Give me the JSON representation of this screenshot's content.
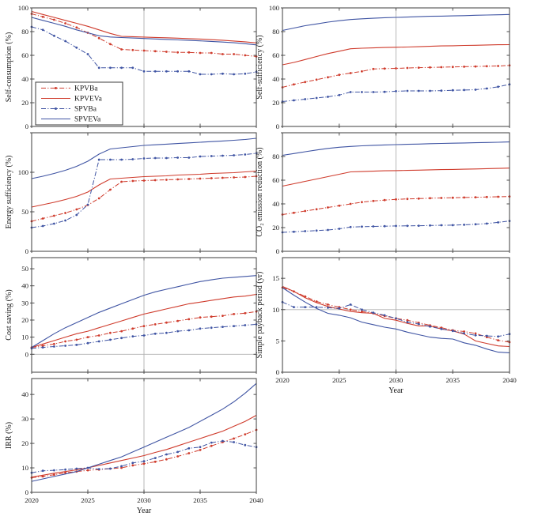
{
  "colors": {
    "red": "#cf3b2c",
    "blue": "#3f54a3",
    "grid": "#b0b0b0",
    "axis": "#3d3d3d",
    "background": "#ffffff"
  },
  "legend": {
    "position": "southwest-of-first-panel",
    "items": [
      {
        "label": "KPVBa",
        "color": "red",
        "style": "dashdot",
        "markers": true
      },
      {
        "label": "KPVEVa",
        "color": "red",
        "style": "solid",
        "markers": false
      },
      {
        "label": "SPVBa",
        "color": "blue",
        "style": "dashdot",
        "markers": true
      },
      {
        "label": "SPVEVa",
        "color": "blue",
        "style": "solid",
        "markers": false
      }
    ]
  },
  "chart_meta": {
    "x_years": [
      2020,
      2021,
      2022,
      2023,
      2024,
      2025,
      2026,
      2027,
      2028,
      2029,
      2030,
      2031,
      2032,
      2033,
      2034,
      2035,
      2036,
      2037,
      2038,
      2039,
      2040
    ],
    "xlabel": "Year",
    "grid": "vertical line at 2030 on every panel"
  },
  "chart_data": [
    {
      "id": "self-consumption",
      "type": "line",
      "ylabel": "Self-consumption (%)",
      "ylim": [
        0,
        100
      ],
      "yticks": [
        0,
        20,
        40,
        60,
        80,
        100
      ],
      "ytick_labels": [
        "0",
        "20",
        "40",
        "60",
        "80",
        "100"
      ],
      "xticks": [
        2020,
        2025,
        2030,
        2035,
        2040
      ],
      "show_x_tick_labels": false,
      "xlabel": "",
      "vgrid": [
        2030
      ],
      "hgrid": [],
      "legend_here": true,
      "series": [
        {
          "name": "KPVBa",
          "color": "red",
          "style": "dashdot",
          "markers": true,
          "values": [
            95,
            92.5,
            90,
            87,
            83.5,
            79,
            74.5,
            69.5,
            65,
            64.5,
            64,
            63.5,
            63,
            62.5,
            62.5,
            62,
            62,
            61,
            61,
            60,
            59
          ]
        },
        {
          "name": "KPVEVa",
          "color": "red",
          "style": "solid",
          "markers": false,
          "values": [
            97,
            94.5,
            92,
            89.5,
            87,
            84.5,
            81.5,
            78.5,
            76,
            75.7,
            75.4,
            75.1,
            74.8,
            74.5,
            74.1,
            73.7,
            73.2,
            72.7,
            72.1,
            71.4,
            70.5
          ]
        },
        {
          "name": "SPVBa",
          "color": "blue",
          "style": "dashdot",
          "markers": true,
          "values": [
            84,
            81.5,
            76.5,
            72,
            66.5,
            61,
            49.5,
            49.5,
            49.5,
            49.5,
            46.5,
            46.5,
            46.5,
            46.5,
            46.5,
            44,
            44,
            44.5,
            44,
            44.5,
            46
          ]
        },
        {
          "name": "SPVEVa",
          "color": "blue",
          "style": "solid",
          "markers": false,
          "values": [
            92,
            89.5,
            87,
            84.5,
            81.5,
            79,
            76.5,
            75.5,
            75,
            74.6,
            74.2,
            73.8,
            73.4,
            73,
            72.6,
            72.2,
            71.7,
            71.2,
            70.6,
            69.8,
            68.8
          ]
        }
      ]
    },
    {
      "id": "self-sufficiency",
      "type": "line",
      "ylabel": "Self-sufficiency (%)",
      "ylim": [
        0,
        100
      ],
      "yticks": [
        0,
        20,
        40,
        60,
        80,
        100
      ],
      "ytick_labels": [
        "0",
        "20",
        "40",
        "60",
        "80",
        "100"
      ],
      "xticks": [
        2020,
        2025,
        2030,
        2035,
        2040
      ],
      "show_x_tick_labels": false,
      "xlabel": "",
      "vgrid": [
        2030
      ],
      "hgrid": [],
      "series": [
        {
          "name": "KPVBa",
          "color": "red",
          "style": "dashdot",
          "markers": true,
          "values": [
            33,
            35.5,
            37.5,
            39.5,
            41.5,
            43.5,
            45,
            46.5,
            48.5,
            48.8,
            49,
            49.3,
            49.6,
            49.8,
            50,
            50.2,
            50.4,
            50.6,
            50.8,
            51,
            51.5
          ]
        },
        {
          "name": "KPVEVa",
          "color": "red",
          "style": "solid",
          "markers": false,
          "values": [
            52,
            54,
            56.5,
            59,
            61.5,
            63.5,
            65.5,
            66,
            66.3,
            66.6,
            66.8,
            67,
            67.3,
            67.6,
            67.9,
            68.1,
            68.3,
            68.5,
            68.7,
            68.9,
            69
          ]
        },
        {
          "name": "SPVBa",
          "color": "blue",
          "style": "dashdot",
          "markers": true,
          "values": [
            21,
            22,
            23,
            24,
            25,
            26.5,
            29,
            29,
            29,
            29.2,
            29.7,
            30,
            30,
            30,
            30.2,
            30.5,
            30.7,
            31,
            32,
            33.5,
            35.5
          ]
        },
        {
          "name": "SPVEVa",
          "color": "blue",
          "style": "solid",
          "markers": false,
          "values": [
            81,
            83,
            85,
            86.5,
            88,
            89.2,
            90.2,
            90.8,
            91.3,
            91.7,
            92,
            92.3,
            92.6,
            92.9,
            93.1,
            93.3,
            93.5,
            93.8,
            94,
            94.2,
            94.5
          ]
        }
      ]
    },
    {
      "id": "energy-sufficiency",
      "type": "line",
      "ylabel": "Energy sufficiency (%)",
      "ylim": [
        0,
        150
      ],
      "yticks": [
        0,
        50,
        100,
        150
      ],
      "ytick_labels": [
        "0",
        "50",
        "100",
        ""
      ],
      "xticks": [
        2020,
        2025,
        2030,
        2035,
        2040
      ],
      "show_x_tick_labels": false,
      "xlabel": "",
      "vgrid": [
        2030
      ],
      "hgrid": [],
      "series": [
        {
          "name": "KPVBa",
          "color": "red",
          "style": "dashdot",
          "markers": true,
          "values": [
            38,
            41.5,
            45,
            48.5,
            53,
            58.5,
            67,
            78,
            88,
            89,
            89.5,
            90,
            90.5,
            91,
            91.5,
            92,
            92.5,
            93,
            93.5,
            94,
            95
          ]
        },
        {
          "name": "KPVEVa",
          "color": "red",
          "style": "solid",
          "markers": false,
          "values": [
            56,
            59,
            62,
            65.5,
            69.5,
            75,
            84,
            91.5,
            92.5,
            93.5,
            94.5,
            95,
            95.5,
            96.5,
            97,
            97.5,
            98.5,
            99,
            99.5,
            100.5,
            101.5
          ]
        },
        {
          "name": "SPVBa",
          "color": "blue",
          "style": "dashdot",
          "markers": true,
          "values": [
            30,
            32,
            35,
            39,
            46,
            59,
            116,
            116,
            116,
            116.5,
            117.5,
            118,
            118,
            118.5,
            118.5,
            120,
            120.5,
            121,
            121.5,
            122.5,
            124
          ]
        },
        {
          "name": "SPVEVa",
          "color": "blue",
          "style": "solid",
          "markers": false,
          "values": [
            92,
            95,
            98.5,
            102.5,
            107.5,
            114,
            123,
            129.5,
            131,
            132.5,
            134,
            134.8,
            135.6,
            136.4,
            137.2,
            138,
            138.8,
            139.6,
            140.5,
            141.5,
            143
          ]
        }
      ]
    },
    {
      "id": "co2-emission-reduction",
      "type": "line",
      "ylabel": "CO₂ emission reduction (%)",
      "ylim": [
        0,
        100
      ],
      "yticks": [
        0,
        20,
        40,
        60,
        80,
        100
      ],
      "ytick_labels": [
        "0",
        "20",
        "40",
        "60",
        "80",
        ""
      ],
      "xticks": [
        2020,
        2025,
        2030,
        2035,
        2040
      ],
      "show_x_tick_labels": false,
      "xlabel": "",
      "vgrid": [
        2030
      ],
      "hgrid": [],
      "series": [
        {
          "name": "KPVBa",
          "color": "red",
          "style": "dashdot",
          "markers": true,
          "values": [
            31,
            32.5,
            34,
            35.5,
            37,
            38.5,
            40,
            41.5,
            42.5,
            43.2,
            43.8,
            44.2,
            44.5,
            44.8,
            45,
            45.2,
            45.4,
            45.6,
            45.8,
            46,
            46.3
          ]
        },
        {
          "name": "KPVEVa",
          "color": "red",
          "style": "solid",
          "markers": false,
          "values": [
            55,
            57,
            59,
            61,
            63,
            65,
            67,
            67.3,
            67.6,
            67.9,
            68.1,
            68.3,
            68.5,
            68.7,
            68.9,
            69.1,
            69.3,
            69.5,
            69.7,
            69.9,
            70.2
          ]
        },
        {
          "name": "SPVBa",
          "color": "blue",
          "style": "dashdot",
          "markers": true,
          "values": [
            16,
            16.5,
            17,
            17.5,
            18,
            19,
            20.5,
            20.8,
            21,
            21.2,
            21.4,
            21.5,
            21.6,
            21.8,
            22,
            22.1,
            22.4,
            22.8,
            23.4,
            24.4,
            25.6
          ]
        },
        {
          "name": "SPVEVa",
          "color": "blue",
          "style": "solid",
          "markers": false,
          "values": [
            81,
            82.5,
            84,
            85.5,
            86.8,
            87.8,
            88.5,
            89,
            89.4,
            89.7,
            90,
            90.3,
            90.5,
            90.8,
            91,
            91.2,
            91.4,
            91.6,
            91.8,
            92,
            92.3
          ]
        }
      ]
    },
    {
      "id": "cost-saving",
      "type": "line",
      "ylabel": "Cost saving (%)",
      "ylim": [
        -10.5,
        56.5
      ],
      "yticks": [
        0,
        10,
        20,
        30,
        40,
        50
      ],
      "ytick_labels": [
        "0",
        "10",
        "20",
        "30",
        "40",
        "50"
      ],
      "xticks": [
        2020,
        2025,
        2030,
        2035,
        2040
      ],
      "show_x_tick_labels": false,
      "xlabel": "",
      "vgrid": [
        2030
      ],
      "hgrid": [
        0
      ],
      "series": [
        {
          "name": "KPVBa",
          "color": "red",
          "style": "dashdot",
          "markers": true,
          "values": [
            4,
            5,
            6,
            7.5,
            8.5,
            10,
            11,
            12.5,
            13.5,
            15,
            16.5,
            17.5,
            18.5,
            19.5,
            20.5,
            21.5,
            22,
            22.5,
            23.5,
            24,
            25
          ]
        },
        {
          "name": "KPVEVa",
          "color": "red",
          "style": "solid",
          "markers": false,
          "values": [
            4,
            6,
            8,
            10,
            12,
            13.5,
            15.5,
            17.5,
            19.5,
            21.5,
            23.5,
            25,
            26.5,
            28,
            29.5,
            30.5,
            31.5,
            32.5,
            33.5,
            34,
            35
          ]
        },
        {
          "name": "SPVBa",
          "color": "blue",
          "style": "dashdot",
          "markers": true,
          "values": [
            3.5,
            4,
            4.5,
            5,
            5.5,
            6.5,
            7.5,
            8.5,
            9.5,
            10.5,
            11,
            12,
            12.5,
            13.5,
            14,
            15,
            15.5,
            16,
            16.5,
            17,
            17.5
          ]
        },
        {
          "name": "SPVEVa",
          "color": "blue",
          "style": "solid",
          "markers": false,
          "values": [
            4,
            8,
            12,
            15.5,
            18.5,
            21.5,
            24.5,
            27,
            29.5,
            32,
            34.5,
            36.5,
            38,
            39.5,
            41,
            42.5,
            43.5,
            44.5,
            45,
            45.5,
            46
          ]
        }
      ]
    },
    {
      "id": "simple-payback-period",
      "type": "line",
      "ylabel": "Simple payback period (yr)",
      "ylim": [
        0,
        18.3
      ],
      "yticks": [
        0,
        5,
        10,
        15
      ],
      "ytick_labels": [
        "0",
        "5",
        "10",
        "15"
      ],
      "xticks": [
        2020,
        2025,
        2030,
        2035,
        2040
      ],
      "show_x_tick_labels": true,
      "xlabel": "Year",
      "vgrid": [
        2030
      ],
      "hgrid": [
        10
      ],
      "series": [
        {
          "name": "KPVBa",
          "color": "red",
          "style": "dashdot",
          "markers": true,
          "values": [
            13.5,
            12.9,
            12.1,
            11.3,
            10.8,
            10.4,
            10,
            9.7,
            9.4,
            9,
            8.6,
            8.3,
            7.9,
            7.5,
            7.1,
            6.7,
            6.5,
            6.2,
            5.6,
            5.1,
            4.8
          ]
        },
        {
          "name": "KPVEVa",
          "color": "red",
          "style": "solid",
          "markers": false,
          "values": [
            13.7,
            12.9,
            11.9,
            11.1,
            10.5,
            10.1,
            9.7,
            9.5,
            9.4,
            8.6,
            8.3,
            7.8,
            7.4,
            7.4,
            6.9,
            6.6,
            6.1,
            5,
            4.6,
            4.2,
            4.1
          ]
        },
        {
          "name": "SPVBa",
          "color": "blue",
          "style": "dashdot",
          "markers": true,
          "values": [
            11.2,
            10.4,
            10.4,
            10.4,
            10.3,
            10.2,
            10.8,
            10,
            9.5,
            9.1,
            8.6,
            8,
            7.7,
            7.3,
            6.9,
            6.6,
            6.2,
            5.9,
            5.8,
            5.7,
            6.1
          ]
        },
        {
          "name": "SPVEVa",
          "color": "blue",
          "style": "solid",
          "markers": false,
          "values": [
            13.5,
            12.3,
            11.2,
            10.2,
            9.4,
            9.1,
            8.7,
            8,
            7.6,
            7.2,
            6.9,
            6.4,
            6,
            5.6,
            5.4,
            5.3,
            4.7,
            4.3,
            3.7,
            3.2,
            3.1
          ]
        }
      ]
    },
    {
      "id": "irr",
      "type": "line",
      "ylabel": "IRR (%)",
      "ylim": [
        0,
        46.5
      ],
      "yticks": [
        0,
        10,
        20,
        30,
        40
      ],
      "ytick_labels": [
        "0",
        "10",
        "20",
        "30",
        "40"
      ],
      "xticks": [
        2020,
        2025,
        2030,
        2035,
        2040
      ],
      "show_x_tick_labels": true,
      "xlabel": "Year",
      "vgrid": [
        2030
      ],
      "hgrid": [],
      "series": [
        {
          "name": "KPVBa",
          "color": "red",
          "style": "dashdot",
          "markers": true,
          "values": [
            6,
            6.5,
            7.2,
            8,
            8.5,
            9,
            9.3,
            9.7,
            10,
            11,
            11.7,
            12.5,
            13.5,
            14.7,
            16,
            17.3,
            19,
            20.5,
            22,
            23.7,
            25.5
          ]
        },
        {
          "name": "KPVEVa",
          "color": "red",
          "style": "solid",
          "markers": false,
          "values": [
            6.2,
            7,
            7.8,
            8.5,
            9.2,
            10,
            11,
            12,
            13,
            14,
            15,
            16.3,
            17.5,
            19,
            20.5,
            22,
            23.5,
            25,
            27,
            29,
            31.5
          ]
        },
        {
          "name": "SPVBa",
          "color": "blue",
          "style": "dashdot",
          "markers": true,
          "values": [
            8,
            8.8,
            9,
            9.3,
            9.7,
            10,
            9.5,
            9.7,
            10.7,
            12,
            12.7,
            14,
            15.5,
            16.5,
            18,
            18.5,
            20.3,
            21,
            20.5,
            19.3,
            18.5
          ]
        },
        {
          "name": "SPVEVa",
          "color": "blue",
          "style": "solid",
          "markers": false,
          "values": [
            4.5,
            5.5,
            6.5,
            7.5,
            8.5,
            10,
            11.5,
            13,
            14.5,
            16.5,
            18.5,
            20.5,
            22.5,
            24.5,
            26.5,
            29,
            31.5,
            34,
            37,
            40.5,
            44.5
          ]
        }
      ]
    }
  ]
}
